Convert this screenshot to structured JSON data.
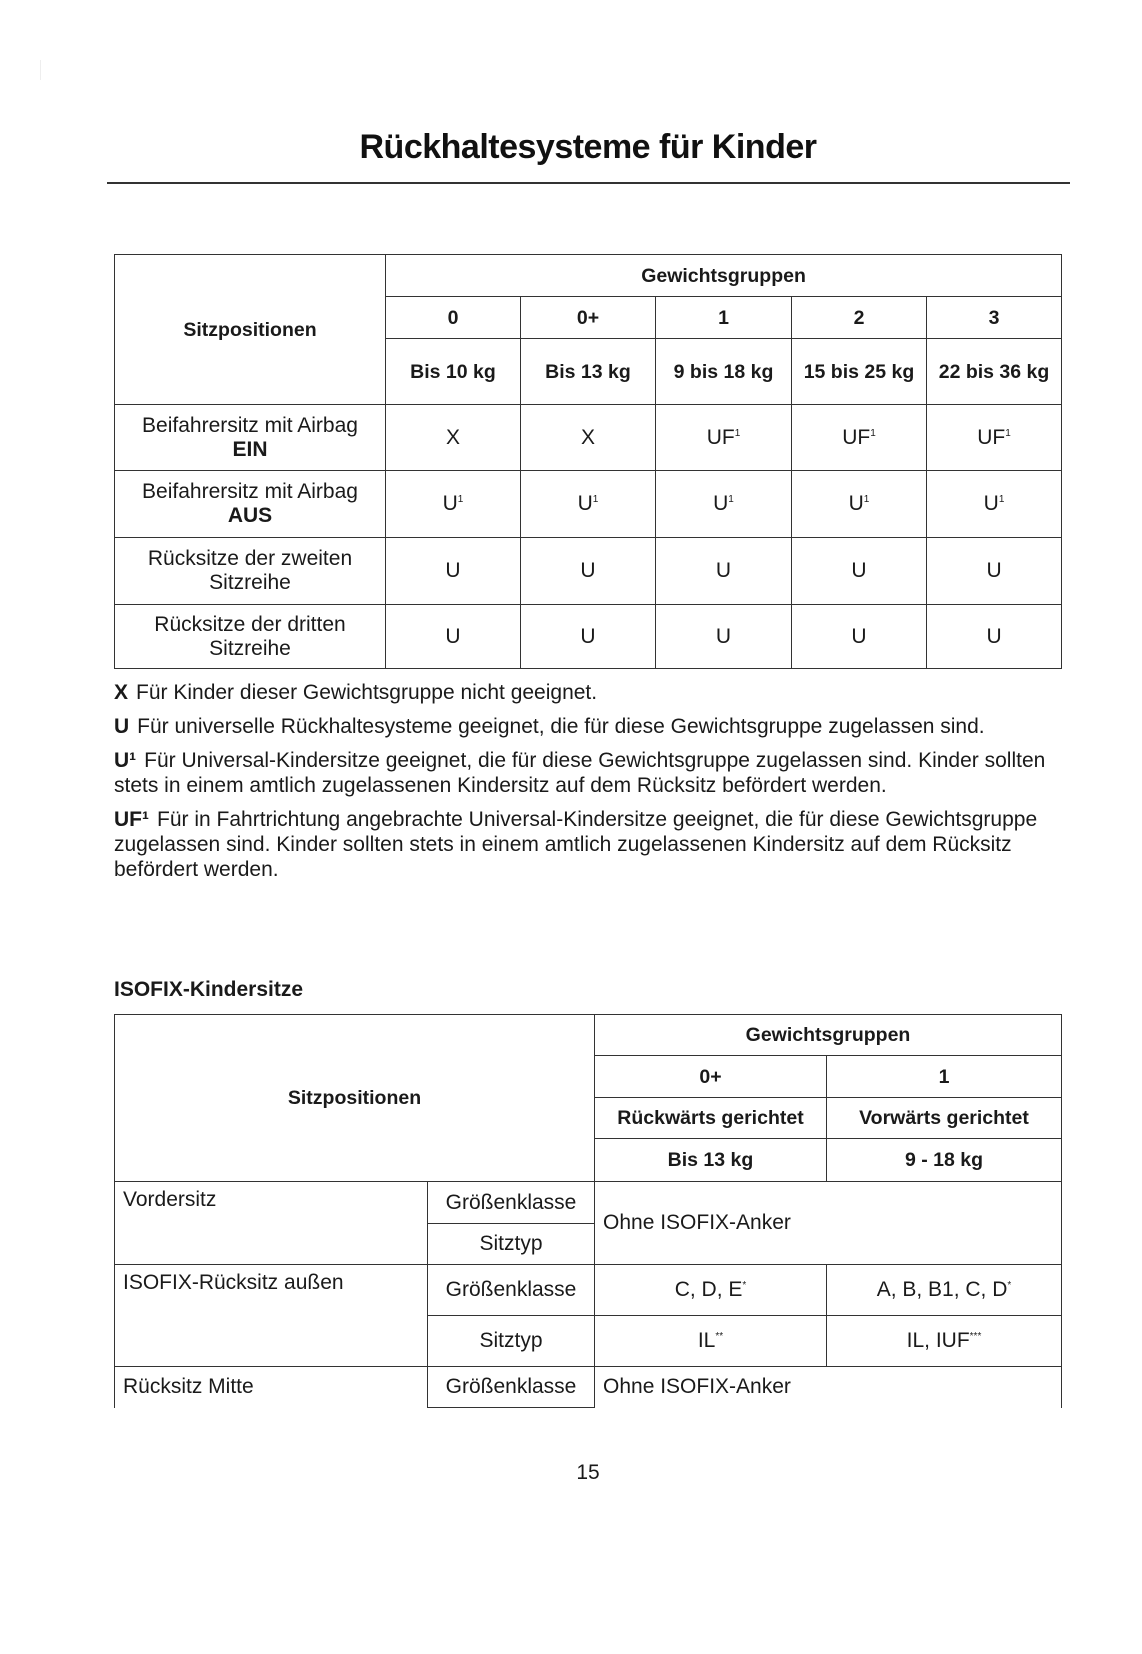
{
  "title": "Rückhaltesysteme für Kinder",
  "table1": {
    "sitz_header": "Sitzpositionen",
    "group_header": "Gewichtsgruppen",
    "groups": [
      "0",
      "0+",
      "1",
      "2",
      "3"
    ],
    "weights": [
      "Bis 10 kg",
      "Bis 13 kg",
      "9 bis 18 kg",
      "15 bis 25 kg",
      "22 bis 36 kg"
    ],
    "rows": [
      {
        "label": "Beifahrersitz mit Airbag",
        "label_bold": "EIN",
        "cells": [
          {
            "t": "X",
            "s": ""
          },
          {
            "t": "X",
            "s": ""
          },
          {
            "t": "UF",
            "s": "1"
          },
          {
            "t": "UF",
            "s": "1"
          },
          {
            "t": "UF",
            "s": "1"
          }
        ]
      },
      {
        "label": "Beifahrersitz mit Airbag",
        "label_bold": "AUS",
        "cells": [
          {
            "t": "U",
            "s": "1"
          },
          {
            "t": "U",
            "s": "1"
          },
          {
            "t": "U",
            "s": "1"
          },
          {
            "t": "U",
            "s": "1"
          },
          {
            "t": "U",
            "s": "1"
          }
        ]
      },
      {
        "label": "Rücksitze der zweiten Sitzreihe",
        "label_bold": "",
        "cells": [
          {
            "t": "U",
            "s": ""
          },
          {
            "t": "U",
            "s": ""
          },
          {
            "t": "U",
            "s": ""
          },
          {
            "t": "U",
            "s": ""
          },
          {
            "t": "U",
            "s": ""
          }
        ]
      },
      {
        "label": "Rücksitze der dritten Sitzreihe",
        "label_bold": "",
        "cells": [
          {
            "t": "U",
            "s": ""
          },
          {
            "t": "U",
            "s": ""
          },
          {
            "t": "U",
            "s": ""
          },
          {
            "t": "U",
            "s": ""
          },
          {
            "t": "U",
            "s": ""
          }
        ]
      }
    ]
  },
  "legend": [
    {
      "key": "X",
      "text": "Für Kinder dieser Gewichtsgruppe nicht geeignet."
    },
    {
      "key": "U",
      "text": "Für universelle Rückhaltesysteme geeignet, die für diese Gewichtsgruppe zugelassen sind."
    },
    {
      "key": "U¹",
      "text": "Für Universal-Kindersitze geeignet, die für diese Gewichtsgruppe zugelassen sind. Kinder sollten stets in einem amtlich zugelassenen Kindersitz auf dem Rücksitz befördert werden."
    },
    {
      "key": "UF¹",
      "text": "Für in Fahrtrichtung angebrachte Universal-Kindersitze geeignet, die für diese Gewichtsgruppe zugelassen sind. Kinder sollten stets in einem amtlich zugelassenen Kindersitz auf dem Rücksitz befördert werden."
    }
  ],
  "isofix": {
    "heading": "ISOFIX-Kindersitze",
    "sitz_header": "Sitzpositionen",
    "group_header": "Gewichtsgruppen",
    "groups": [
      "0+",
      "1"
    ],
    "directions": [
      "Rückwärts gerichtet",
      "Vorwärts gerichtet"
    ],
    "weights": [
      "Bis 13 kg",
      "9 - 18 kg"
    ],
    "vordersitz": "Vordersitz",
    "aussen": "ISOFIX-Rücksitz außen",
    "mitte": "Rücksitz Mitte",
    "groessenklasse": "Größenklasse",
    "sitztyp": "Sitztyp",
    "ohne_anker": "Ohne ISOFIX-Anker",
    "aussen_gk": [
      {
        "t": "C, D, E",
        "s": "*"
      },
      {
        "t": "A, B, B1, C, D",
        "s": "*"
      }
    ],
    "aussen_st": [
      {
        "t": "IL",
        "s": "**"
      },
      {
        "t": "IL, IUF",
        "s": "***"
      }
    ]
  },
  "page_number": "15"
}
